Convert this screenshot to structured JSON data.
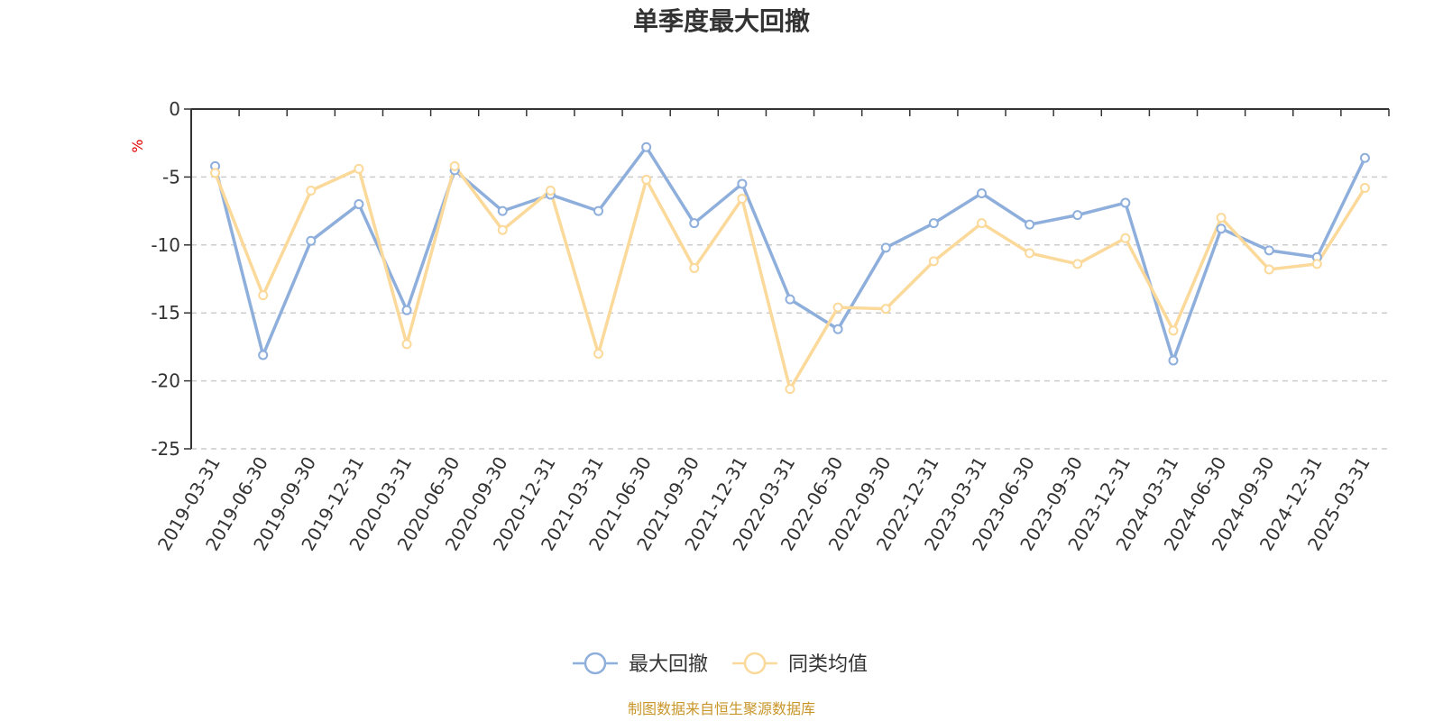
{
  "chart_data": {
    "type": "line",
    "title": "单季度最大回撤",
    "y_unit": "%",
    "ylim": [
      -25,
      0
    ],
    "y_ticks": [
      0,
      -5,
      -10,
      -15,
      -20,
      -25
    ],
    "grid": "horizontal dashed",
    "legend_position": "bottom-center",
    "categories": [
      "2019-03-31",
      "2019-06-30",
      "2019-09-30",
      "2019-12-31",
      "2020-03-31",
      "2020-06-30",
      "2020-09-30",
      "2020-12-31",
      "2021-03-31",
      "2021-06-30",
      "2021-09-30",
      "2021-12-31",
      "2022-03-31",
      "2022-06-30",
      "2022-09-30",
      "2022-12-31",
      "2023-03-31",
      "2023-06-30",
      "2023-09-30",
      "2023-12-31",
      "2024-03-31",
      "2024-06-30",
      "2024-09-30",
      "2024-12-31",
      "2025-03-31"
    ],
    "series": [
      {
        "name": "最大回撤",
        "color": "#8eaedb",
        "values": [
          -4.2,
          -18.1,
          -9.7,
          -7.0,
          -14.8,
          -4.5,
          -7.5,
          -6.3,
          -7.5,
          -2.8,
          -8.4,
          -5.5,
          -14.0,
          -16.2,
          -10.2,
          -8.4,
          -6.2,
          -8.5,
          -7.8,
          -6.9,
          -18.5,
          -8.8,
          -10.4,
          -10.9,
          -3.6
        ]
      },
      {
        "name": "同类均值",
        "color": "#fbd99a",
        "values": [
          -4.7,
          -13.7,
          -6.0,
          -4.4,
          -17.3,
          -4.2,
          -8.9,
          -6.0,
          -18.0,
          -5.2,
          -11.7,
          -6.6,
          -20.6,
          -14.6,
          -14.7,
          -11.2,
          -8.4,
          -10.6,
          -11.4,
          -9.5,
          -16.3,
          -8.0,
          -11.8,
          -11.4,
          -5.8
        ]
      }
    ]
  },
  "footer": {
    "source": "制图数据来自恒生聚源数据库"
  }
}
